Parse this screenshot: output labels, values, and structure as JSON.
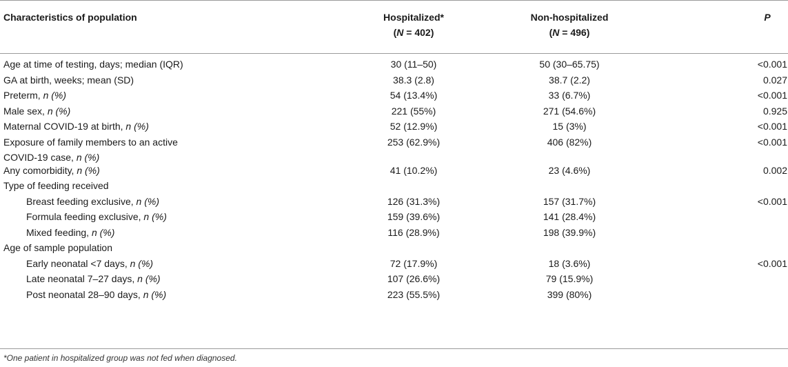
{
  "header": {
    "col0": "Characteristics of population",
    "col1": "Hospitalized*",
    "col1_sub_pre": "(",
    "col1_sub_n": "N",
    "col1_sub_post": " = 402)",
    "col2": "Non-hospitalized",
    "col2_sub_pre": "(",
    "col2_sub_n": "N",
    "col2_sub_post": " = 496)",
    "col3": "P"
  },
  "rows": [
    {
      "label": "Age at time of testing, days; median (IQR)",
      "n_suffix": "",
      "h": "30 (11–50)",
      "nh": "50 (30–65.75)",
      "p": "<0.001"
    },
    {
      "label": "GA at birth, weeks; mean (SD)",
      "n_suffix": "",
      "h": "38.3 (2.8)",
      "nh": "38.7 (2.2)",
      "p": "0.027"
    },
    {
      "label": "Preterm, ",
      "n_suffix": "n (%)",
      "h": "54 (13.4%)",
      "nh": "33 (6.7%)",
      "p": "<0.001"
    },
    {
      "label": "Male sex, ",
      "n_suffix": "n (%)",
      "h": "221 (55%)",
      "nh": "271 (54.6%)",
      "p": "0.925"
    },
    {
      "label": "Maternal COVID-19 at birth, ",
      "n_suffix": "n (%)",
      "h": "52 (12.9%)",
      "nh": "15 (3%)",
      "p": "<0.001"
    },
    {
      "label_line1": "Exposure of family members to an active",
      "label_line2": "COVID-19 case, ",
      "n_suffix": "n (%)",
      "h": "253 (62.9%)",
      "nh": "406 (82%)",
      "p": "<0.001"
    },
    {
      "label": "Any comorbidity, ",
      "n_suffix": "n (%)",
      "h": "41 (10.2%)",
      "nh": "23 (4.6%)",
      "p": "0.002"
    },
    {
      "label": "Type of feeding received",
      "n_suffix": "",
      "h": "",
      "nh": "",
      "p": ""
    },
    {
      "label": "Breast feeding exclusive, ",
      "n_suffix": "n (%)",
      "h": "126 (31.3%)",
      "nh": "157 (31.7%)",
      "p": "<0.001"
    },
    {
      "label": "Formula feeding exclusive, ",
      "n_suffix": "n (%)",
      "h": "159 (39.6%)",
      "nh": "141 (28.4%)",
      "p": ""
    },
    {
      "label": "Mixed feeding, ",
      "n_suffix": "n (%)",
      "h": "116 (28.9%)",
      "nh": "198 (39.9%)",
      "p": ""
    },
    {
      "label": "Age of sample population",
      "n_suffix": "",
      "h": "",
      "nh": "",
      "p": ""
    },
    {
      "label": "Early neonatal <7 days, ",
      "n_suffix": "n (%)",
      "h": "72 (17.9%)",
      "nh": "18 (3.6%)",
      "p": "<0.001"
    },
    {
      "label": "Late neonatal 7–27 days, ",
      "n_suffix": "n (%)",
      "h": "107 (26.6%)",
      "nh": "79 (15.9%)",
      "p": ""
    },
    {
      "label": "Post neonatal 28–90 days, ",
      "n_suffix": "n (%)",
      "h": "223 (55.5%)",
      "nh": "399 (80%)",
      "p": ""
    }
  ],
  "footnote": "*One patient in hospitalized group was not fed when diagnosed."
}
